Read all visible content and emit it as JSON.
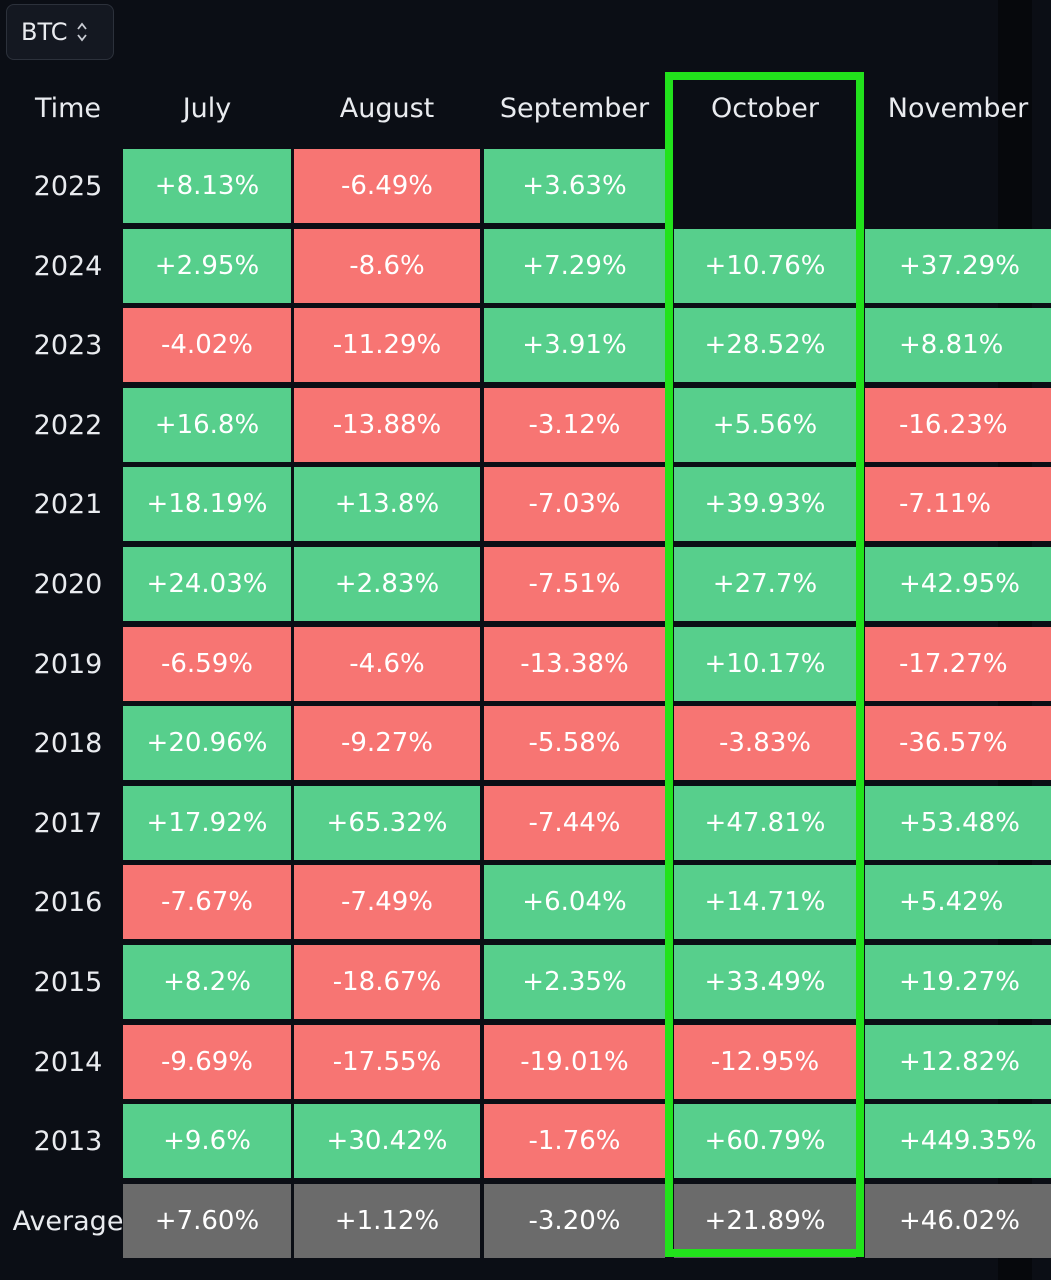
{
  "asset_selector": {
    "value": "BTC",
    "icon": "chevron-up-down-icon"
  },
  "colors": {
    "positive": "#57cf8c",
    "negative": "#f77573",
    "average": "#6b6b6b",
    "highlight": "#22e21c"
  },
  "table": {
    "time_header": "Time",
    "months": [
      "July",
      "August",
      "September",
      "October",
      "November"
    ],
    "highlighted_month": "October",
    "rows": [
      {
        "label": "2025",
        "values": [
          "+8.13%",
          "-6.49%",
          "+3.63%",
          "",
          ""
        ]
      },
      {
        "label": "2024",
        "values": [
          "+2.95%",
          "-8.6%",
          "+7.29%",
          "+10.76%",
          "+37.29%"
        ]
      },
      {
        "label": "2023",
        "values": [
          "-4.02%",
          "-11.29%",
          "+3.91%",
          "+28.52%",
          "+8.81%"
        ]
      },
      {
        "label": "2022",
        "values": [
          "+16.8%",
          "-13.88%",
          "-3.12%",
          "+5.56%",
          "-16.23%"
        ]
      },
      {
        "label": "2021",
        "values": [
          "+18.19%",
          "+13.8%",
          "-7.03%",
          "+39.93%",
          "-7.11%"
        ]
      },
      {
        "label": "2020",
        "values": [
          "+24.03%",
          "+2.83%",
          "-7.51%",
          "+27.7%",
          "+42.95%"
        ]
      },
      {
        "label": "2019",
        "values": [
          "-6.59%",
          "-4.6%",
          "-13.38%",
          "+10.17%",
          "-17.27%"
        ]
      },
      {
        "label": "2018",
        "values": [
          "+20.96%",
          "-9.27%",
          "-5.58%",
          "-3.83%",
          "-36.57%"
        ]
      },
      {
        "label": "2017",
        "values": [
          "+17.92%",
          "+65.32%",
          "-7.44%",
          "+47.81%",
          "+53.48%"
        ]
      },
      {
        "label": "2016",
        "values": [
          "-7.67%",
          "-7.49%",
          "+6.04%",
          "+14.71%",
          "+5.42%"
        ]
      },
      {
        "label": "2015",
        "values": [
          "+8.2%",
          "-18.67%",
          "+2.35%",
          "+33.49%",
          "+19.27%"
        ]
      },
      {
        "label": "2014",
        "values": [
          "-9.69%",
          "-17.55%",
          "-19.01%",
          "-12.95%",
          "+12.82%"
        ]
      },
      {
        "label": "2013",
        "values": [
          "+9.6%",
          "+30.42%",
          "-1.76%",
          "+60.79%",
          "+449.35%"
        ]
      }
    ],
    "average": {
      "label": "Average",
      "values": [
        "+7.60%",
        "+1.12%",
        "-3.20%",
        "+21.89%",
        "+46.02%"
      ]
    }
  }
}
